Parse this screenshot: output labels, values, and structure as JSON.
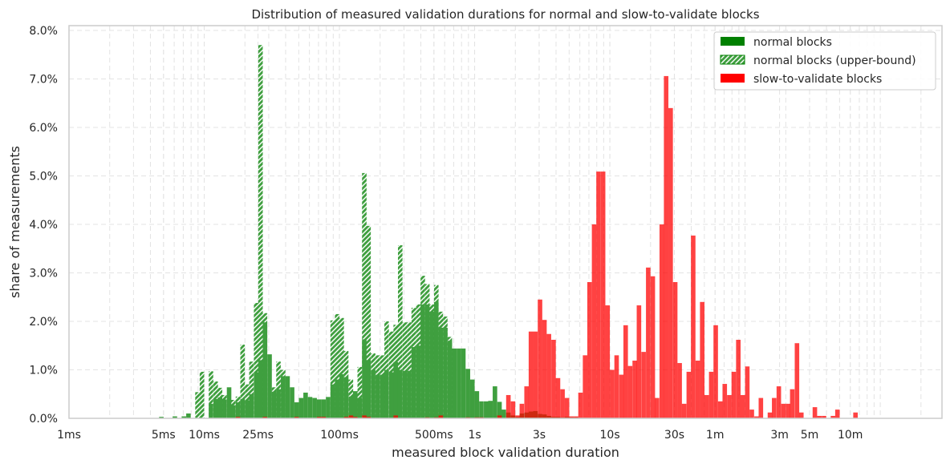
{
  "chart_data": {
    "type": "bar",
    "title": "Distribution of measured validation durations for normal and slow-to-validate blocks",
    "xlabel": "measured block validation duration",
    "ylabel": "share of measurements",
    "x_scale": "log",
    "x_unit": "seconds",
    "xlim": [
      0.001,
      2860
    ],
    "ylim": [
      0,
      8.1
    ],
    "grid": true,
    "legend_placement": "top-right",
    "x_ticks": [
      {
        "value": 0.001,
        "label": "1ms"
      },
      {
        "value": 0.005,
        "label": "5ms"
      },
      {
        "value": 0.01,
        "label": "10ms"
      },
      {
        "value": 0.025,
        "label": "25ms"
      },
      {
        "value": 0.1,
        "label": "100ms"
      },
      {
        "value": 0.5,
        "label": "500ms"
      },
      {
        "value": 1,
        "label": "1s"
      },
      {
        "value": 3,
        "label": "3s"
      },
      {
        "value": 10,
        "label": "10s"
      },
      {
        "value": 30,
        "label": "30s"
      },
      {
        "value": 60,
        "label": "1m"
      },
      {
        "value": 180,
        "label": "3m"
      },
      {
        "value": 300,
        "label": "5m"
      },
      {
        "value": 600,
        "label": "10m"
      }
    ],
    "y_ticks": [
      {
        "value": 0,
        "label": "0.0%"
      },
      {
        "value": 1,
        "label": "1.0%"
      },
      {
        "value": 2,
        "label": "2.0%"
      },
      {
        "value": 3,
        "label": "3.0%"
      },
      {
        "value": 4,
        "label": "4.0%"
      },
      {
        "value": 5,
        "label": "5.0%"
      },
      {
        "value": 6,
        "label": "6.0%"
      },
      {
        "value": 7,
        "label": "7.0%"
      },
      {
        "value": 8,
        "label": "8.0%"
      }
    ],
    "series": [
      {
        "name": "normal blocks (upper-bound)",
        "color": "#008000",
        "style": "hatched",
        "points": [
          [
            0.00858,
            0.54
          ],
          [
            0.00926,
            0.96
          ],
          [
            0.0108,
            0.97
          ],
          [
            0.0117,
            0.76
          ],
          [
            0.0126,
            0.63
          ],
          [
            0.0136,
            0.48
          ],
          [
            0.0158,
            0.38
          ],
          [
            0.0171,
            0.45
          ],
          [
            0.0185,
            1.52
          ],
          [
            0.02,
            0.7
          ],
          [
            0.0215,
            1.17
          ],
          [
            0.0233,
            2.38
          ],
          [
            0.0251,
            7.7
          ],
          [
            0.0271,
            2.17
          ],
          [
            0.0316,
            0.64
          ],
          [
            0.0341,
            1.17
          ],
          [
            0.0369,
            1.0
          ],
          [
            0.0858,
            2.02
          ],
          [
            0.0926,
            2.15
          ],
          [
            0.1,
            2.07
          ],
          [
            0.108,
            1.39
          ],
          [
            0.117,
            0.8
          ],
          [
            0.136,
            1.06
          ],
          [
            0.147,
            5.06
          ],
          [
            0.158,
            3.97
          ],
          [
            0.171,
            1.34
          ],
          [
            0.185,
            1.3
          ],
          [
            0.2,
            1.3
          ],
          [
            0.215,
            2.0
          ],
          [
            0.233,
            1.79
          ],
          [
            0.251,
            1.93
          ],
          [
            0.271,
            3.57
          ],
          [
            0.293,
            1.98
          ],
          [
            0.316,
            1.98
          ],
          [
            0.341,
            2.28
          ],
          [
            0.369,
            2.35
          ],
          [
            0.398,
            2.94
          ],
          [
            0.43,
            2.77
          ],
          [
            0.464,
            2.35
          ],
          [
            0.501,
            2.75
          ],
          [
            0.541,
            2.2
          ],
          [
            0.584,
            2.1
          ],
          [
            0.631,
            1.68
          ]
        ]
      },
      {
        "name": "normal blocks",
        "color": "#008000",
        "style": "solid",
        "points": [
          [
            0.00464,
            0.03
          ],
          [
            0.00584,
            0.04
          ],
          [
            0.00681,
            0.04
          ],
          [
            0.00736,
            0.1
          ],
          [
            0.0108,
            0.3
          ],
          [
            0.0117,
            0.4
          ],
          [
            0.0126,
            0.43
          ],
          [
            0.0136,
            0.39
          ],
          [
            0.0147,
            0.64
          ],
          [
            0.0158,
            0.27
          ],
          [
            0.0171,
            0.33
          ],
          [
            0.0185,
            0.4
          ],
          [
            0.02,
            0.37
          ],
          [
            0.0215,
            0.5
          ],
          [
            0.0233,
            0.95
          ],
          [
            0.0251,
            1.2
          ],
          [
            0.0271,
            1.98
          ],
          [
            0.0293,
            1.32
          ],
          [
            0.0316,
            0.55
          ],
          [
            0.0341,
            0.6
          ],
          [
            0.0369,
            0.87
          ],
          [
            0.0398,
            0.87
          ],
          [
            0.043,
            0.64
          ],
          [
            0.0464,
            0.33
          ],
          [
            0.0501,
            0.42
          ],
          [
            0.0541,
            0.53
          ],
          [
            0.0584,
            0.44
          ],
          [
            0.0631,
            0.42
          ],
          [
            0.0681,
            0.39
          ],
          [
            0.0736,
            0.39
          ],
          [
            0.0794,
            0.44
          ],
          [
            0.0858,
            0.7
          ],
          [
            0.0926,
            0.8
          ],
          [
            0.1,
            0.91
          ],
          [
            0.108,
            0.85
          ],
          [
            0.117,
            0.45
          ],
          [
            0.126,
            0.56
          ],
          [
            0.136,
            0.42
          ],
          [
            0.147,
            1.63
          ],
          [
            0.158,
            1.2
          ],
          [
            0.171,
            1.0
          ],
          [
            0.185,
            0.9
          ],
          [
            0.2,
            0.9
          ],
          [
            0.215,
            1.0
          ],
          [
            0.233,
            0.95
          ],
          [
            0.251,
            1.16
          ],
          [
            0.271,
            1.0
          ],
          [
            0.293,
            0.98
          ],
          [
            0.316,
            0.98
          ],
          [
            0.341,
            1.47
          ],
          [
            0.369,
            1.5
          ],
          [
            0.398,
            2.35
          ],
          [
            0.43,
            2.35
          ],
          [
            0.464,
            2.2
          ],
          [
            0.501,
            2.4
          ],
          [
            0.541,
            1.87
          ],
          [
            0.584,
            1.87
          ],
          [
            0.631,
            1.6
          ],
          [
            0.681,
            1.44
          ],
          [
            0.736,
            1.44
          ],
          [
            0.794,
            1.44
          ],
          [
            0.858,
            1.02
          ],
          [
            0.926,
            0.8
          ],
          [
            1.0,
            0.56
          ],
          [
            1.08,
            0.35
          ],
          [
            1.17,
            0.35
          ],
          [
            1.26,
            0.36
          ],
          [
            1.36,
            0.66
          ],
          [
            1.47,
            0.34
          ],
          [
            1.58,
            0.18
          ],
          [
            1.71,
            0.12
          ],
          [
            1.85,
            0.06
          ],
          [
            2.0,
            0.03
          ],
          [
            2.15,
            0.1
          ],
          [
            2.33,
            0.12
          ],
          [
            2.51,
            0.14
          ],
          [
            2.71,
            0.15
          ],
          [
            2.93,
            0.09
          ],
          [
            3.16,
            0.08
          ],
          [
            3.41,
            0.05
          ],
          [
            3.69,
            0.03
          ],
          [
            3.98,
            0.03
          ],
          [
            4.3,
            0.02
          ],
          [
            4.64,
            0.03
          ],
          [
            5.01,
            0.02
          ],
          [
            5.41,
            0.02
          ]
        ]
      },
      {
        "name": "slow-to-validate blocks",
        "color": "#ff0000",
        "style": "solid",
        "points": [
          [
            0.0171,
            0.03
          ],
          [
            0.0271,
            0.03
          ],
          [
            0.0464,
            0.03
          ],
          [
            0.0681,
            0.03
          ],
          [
            0.0736,
            0.03
          ],
          [
            0.108,
            0.03
          ],
          [
            0.117,
            0.06
          ],
          [
            0.126,
            0.03
          ],
          [
            0.147,
            0.06
          ],
          [
            0.158,
            0.03
          ],
          [
            0.251,
            0.06
          ],
          [
            0.43,
            0.02
          ],
          [
            0.501,
            0.02
          ],
          [
            0.541,
            0.06
          ],
          [
            0.858,
            0.02
          ],
          [
            1.0,
            0.02
          ],
          [
            1.08,
            0.02
          ],
          [
            1.47,
            0.06
          ],
          [
            1.71,
            0.48
          ],
          [
            1.85,
            0.35
          ],
          [
            2.0,
            0.06
          ],
          [
            2.15,
            0.3
          ],
          [
            2.33,
            0.66
          ],
          [
            2.51,
            1.79
          ],
          [
            2.71,
            1.79
          ],
          [
            2.93,
            2.45
          ],
          [
            3.16,
            2.03
          ],
          [
            3.41,
            1.74
          ],
          [
            3.69,
            1.62
          ],
          [
            3.98,
            0.83
          ],
          [
            4.3,
            0.6
          ],
          [
            4.64,
            0.42
          ],
          [
            5.01,
            0.04
          ],
          [
            5.41,
            0.04
          ],
          [
            5.84,
            0.53
          ],
          [
            6.31,
            1.3
          ],
          [
            6.81,
            2.81
          ],
          [
            7.36,
            4.0
          ],
          [
            7.94,
            5.09
          ],
          [
            8.58,
            5.09
          ],
          [
            9.26,
            2.33
          ],
          [
            10.0,
            1.0
          ],
          [
            10.8,
            1.3
          ],
          [
            11.7,
            0.9
          ],
          [
            12.6,
            1.92
          ],
          [
            13.6,
            1.08
          ],
          [
            14.7,
            1.19
          ],
          [
            15.8,
            2.33
          ],
          [
            17.1,
            1.37
          ],
          [
            18.5,
            3.11
          ],
          [
            20.0,
            2.93
          ],
          [
            21.5,
            0.42
          ],
          [
            23.3,
            4.0
          ],
          [
            25.1,
            7.06
          ],
          [
            27.1,
            6.4
          ],
          [
            29.3,
            2.81
          ],
          [
            31.6,
            1.14
          ],
          [
            34.1,
            0.3
          ],
          [
            36.9,
            0.96
          ],
          [
            39.8,
            3.77
          ],
          [
            43.0,
            1.19
          ],
          [
            46.4,
            2.4
          ],
          [
            50.1,
            0.48
          ],
          [
            54.1,
            0.96
          ],
          [
            58.4,
            1.92
          ],
          [
            63.1,
            0.35
          ],
          [
            68.1,
            0.71
          ],
          [
            73.6,
            0.48
          ],
          [
            79.4,
            0.96
          ],
          [
            85.8,
            1.62
          ],
          [
            92.6,
            0.48
          ],
          [
            100,
            1.07
          ],
          [
            108,
            0.18
          ],
          [
            117,
            0.04
          ],
          [
            126,
            0.42
          ],
          [
            147,
            0.12
          ],
          [
            158,
            0.42
          ],
          [
            171,
            0.66
          ],
          [
            185,
            0.3
          ],
          [
            200,
            0.3
          ],
          [
            215,
            0.6
          ],
          [
            233,
            1.55
          ],
          [
            251,
            0.12
          ],
          [
            316,
            0.23
          ],
          [
            341,
            0.05
          ],
          [
            369,
            0.05
          ],
          [
            430,
            0.05
          ],
          [
            464,
            0.18
          ],
          [
            631,
            0.12
          ]
        ]
      }
    ],
    "legend": [
      {
        "label": "normal blocks",
        "color": "#008000",
        "style": "solid"
      },
      {
        "label": "normal blocks (upper-bound)",
        "color": "#008000",
        "style": "hatched"
      },
      {
        "label": "slow-to-validate blocks",
        "color": "#ff0000",
        "style": "solid"
      }
    ]
  }
}
